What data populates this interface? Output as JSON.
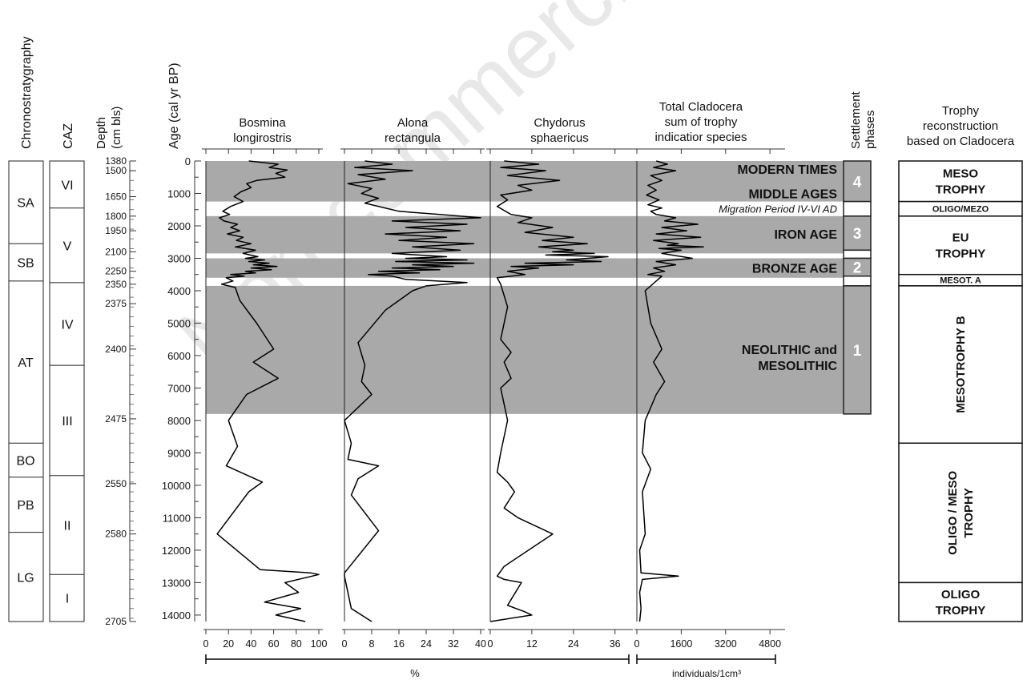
{
  "chart_data": {
    "type": "line",
    "watermark": "Non commercial",
    "column_labels": {
      "chronostratigraphy": "Chronostratygraphy",
      "caz": "CAZ",
      "depth": [
        "Depth",
        "(cm bls)"
      ],
      "age": "Age  (cal yr BP)",
      "settlement": [
        "Settlement",
        "phases"
      ],
      "trophy": [
        "Trophy",
        "reconstruction",
        "based on Cladocera"
      ]
    },
    "age_axis": {
      "ylim": [
        0,
        14200
      ],
      "ticks": [
        0,
        1000,
        2000,
        3000,
        4000,
        5000,
        6000,
        7000,
        8000,
        9000,
        10000,
        11000,
        12000,
        13000,
        14000
      ],
      "tick_labels": [
        "0",
        "1000",
        "2000",
        "3000",
        "4000",
        "5000",
        "6000",
        "7000",
        "8000",
        "9000",
        "10000",
        "11000",
        "12000",
        "13000",
        "14000"
      ]
    },
    "depth_axis": {
      "labels": [
        "1380",
        "1500",
        "1650",
        "1800",
        "1950",
        "2100",
        "2250",
        "2350",
        "2375",
        "2400",
        "2475",
        "2550",
        "2580",
        "2705"
      ],
      "ages": [
        0,
        300,
        1100,
        1700,
        2150,
        2800,
        3400,
        3800,
        4400,
        5800,
        7950,
        9950,
        11500,
        14200
      ]
    },
    "chronozones": [
      {
        "label": "SA",
        "from": 0,
        "to": 2550
      },
      {
        "label": "SB",
        "from": 2550,
        "to": 3700
      },
      {
        "label": "AT",
        "from": 3700,
        "to": 8700
      },
      {
        "label": "BO",
        "from": 8700,
        "to": 9750
      },
      {
        "label": "PB",
        "from": 9750,
        "to": 11450
      },
      {
        "label": "LG",
        "from": 11450,
        "to": 14200
      }
    ],
    "caz_zones": [
      {
        "label": "VI",
        "from": 0,
        "to": 1450
      },
      {
        "label": "V",
        "from": 1450,
        "to": 3750
      },
      {
        "label": "IV",
        "from": 3750,
        "to": 6300
      },
      {
        "label": "III",
        "from": 6300,
        "to": 9700
      },
      {
        "label": "II",
        "from": 9700,
        "to": 12750
      },
      {
        "label": "I",
        "from": 12750,
        "to": 14200
      }
    ],
    "shaded_bands": [
      {
        "from": 0,
        "to": 1250
      },
      {
        "from": 1700,
        "to": 2850
      },
      {
        "from": 3000,
        "to": 3600
      },
      {
        "from": 3850,
        "to": 7800
      }
    ],
    "period_labels": [
      {
        "text": "MODERN TIMES",
        "age": 250,
        "style": "bold"
      },
      {
        "text": "MIDDLE AGES",
        "age": 1000,
        "style": "bold"
      },
      {
        "text": "Migration Period IV-VI AD",
        "age": 1450,
        "style": "italic"
      },
      {
        "text": "IRON AGE",
        "age": 2250,
        "style": "bold"
      },
      {
        "text": "BRONZE AGE",
        "age": 3300,
        "style": "bold"
      },
      {
        "text": "NEOLITHIC and",
        "age": 5800,
        "style": "bold"
      },
      {
        "text": "MESOLITHIC",
        "age": 6300,
        "style": "bold"
      }
    ],
    "series": [
      {
        "name": [
          "Bosmina",
          "longirostris"
        ],
        "xlim": [
          0,
          100
        ],
        "ticks": [
          0,
          20,
          40,
          60,
          80,
          100
        ],
        "tick_labels": [
          "0",
          "20",
          "40",
          "60",
          "80",
          "100"
        ],
        "x": [
          38,
          64,
          56,
          72,
          62,
          70,
          45,
          36,
          40,
          31,
          25,
          33,
          22,
          15,
          21,
          12,
          16,
          28,
          22,
          30,
          19,
          33,
          27,
          40,
          26,
          44,
          33,
          46,
          35,
          52,
          38,
          56,
          42,
          63,
          40,
          58,
          35,
          44,
          22,
          34,
          18,
          24,
          14,
          26,
          30,
          45,
          60,
          42,
          64,
          36,
          20,
          28,
          18,
          50,
          38,
          10,
          48,
          93,
          100,
          70,
          82,
          52,
          84,
          62,
          88
        ],
        "y": [
          0,
          100,
          200,
          280,
          380,
          500,
          600,
          700,
          820,
          950,
          1100,
          1250,
          1400,
          1550,
          1650,
          1750,
          1850,
          1950,
          2050,
          2150,
          2250,
          2350,
          2450,
          2550,
          2650,
          2750,
          2850,
          2950,
          3000,
          3050,
          3100,
          3150,
          3200,
          3250,
          3300,
          3350,
          3400,
          3450,
          3500,
          3550,
          3600,
          3700,
          3800,
          3900,
          4300,
          5000,
          5800,
          6200,
          6700,
          7200,
          8000,
          8800,
          9400,
          9900,
          10200,
          11500,
          12600,
          12700,
          12750,
          13000,
          13300,
          13600,
          13800,
          14000,
          14200
        ]
      },
      {
        "name": [
          "Alona",
          "rectangula"
        ],
        "xlim": [
          0,
          40
        ],
        "ticks": [
          0,
          8,
          16,
          24,
          32,
          40
        ],
        "tick_labels": [
          "0",
          "8",
          "16",
          "24",
          "32",
          "40"
        ],
        "x": [
          6,
          14,
          3,
          20,
          4,
          12,
          1,
          8,
          5,
          10,
          6,
          16,
          28,
          40,
          14,
          36,
          18,
          34,
          12,
          30,
          16,
          38,
          20,
          34,
          14,
          30,
          18,
          36,
          15,
          38,
          20,
          32,
          14,
          28,
          10,
          22,
          7,
          14,
          18,
          36,
          24,
          20,
          12,
          4,
          6,
          5,
          8,
          0,
          2,
          1,
          10,
          4,
          2,
          10,
          0,
          0,
          2,
          8
        ],
        "y": [
          0,
          100,
          200,
          300,
          420,
          560,
          700,
          850,
          1000,
          1150,
          1300,
          1550,
          1650,
          1750,
          1850,
          1950,
          2050,
          2150,
          2250,
          2350,
          2450,
          2550,
          2650,
          2750,
          2850,
          2950,
          3000,
          3050,
          3100,
          3150,
          3200,
          3250,
          3300,
          3350,
          3400,
          3450,
          3500,
          3550,
          3650,
          3750,
          3850,
          4000,
          4600,
          5600,
          6300,
          6800,
          7200,
          8000,
          8700,
          9200,
          9400,
          9800,
          10300,
          11400,
          12700,
          12800,
          13800,
          14200
        ]
      },
      {
        "name": [
          "Chydorus",
          "sphaericus"
        ],
        "xlim": [
          0,
          40
        ],
        "ticks": [
          0,
          12,
          24,
          36
        ],
        "tick_labels": [
          "0",
          "12",
          "24",
          "36"
        ],
        "x": [
          4,
          14,
          3,
          16,
          5,
          20,
          8,
          12,
          3,
          5,
          2,
          6,
          12,
          8,
          18,
          10,
          24,
          15,
          28,
          14,
          24,
          18,
          30,
          16,
          34,
          22,
          32,
          10,
          24,
          6,
          14,
          5,
          10,
          2,
          3,
          5,
          3,
          6,
          4,
          6,
          3,
          5,
          3,
          2,
          5,
          7,
          4,
          8,
          18,
          4,
          2,
          4,
          9,
          5,
          10,
          12,
          0
        ],
        "y": [
          0,
          100,
          200,
          300,
          450,
          600,
          750,
          900,
          1050,
          1200,
          1400,
          1650,
          1750,
          1900,
          2050,
          2200,
          2350,
          2450,
          2550,
          2650,
          2750,
          2800,
          2850,
          2900,
          2950,
          3050,
          3100,
          3150,
          3200,
          3250,
          3300,
          3400,
          3500,
          3600,
          3800,
          4500,
          5500,
          5900,
          6200,
          6700,
          7000,
          8000,
          9000,
          9600,
          9900,
          10200,
          10700,
          11000,
          11500,
          12500,
          12800,
          12900,
          13000,
          13700,
          13900,
          14000,
          14200
        ]
      },
      {
        "name": [
          "Total Cladocera",
          "sum of trophy",
          "indicatior species"
        ],
        "xlim": [
          0,
          5200
        ],
        "ticks": [
          0,
          1600,
          3200,
          4800
        ],
        "tick_labels": [
          "0",
          "1600",
          "3200",
          "4800"
        ],
        "x": [
          700,
          1100,
          600,
          1400,
          500,
          900,
          400,
          700,
          350,
          800,
          400,
          900,
          500,
          700,
          1400,
          1000,
          2200,
          900,
          1800,
          700,
          2300,
          600,
          1500,
          1100,
          2400,
          800,
          1600,
          900,
          2000,
          700,
          1400,
          600,
          1000,
          400,
          900,
          700,
          300,
          500,
          900,
          600,
          1000,
          700,
          300,
          200,
          500,
          200,
          300,
          100,
          150,
          1500,
          200,
          100,
          150,
          100
        ],
        "y": [
          0,
          100,
          200,
          300,
          450,
          600,
          750,
          900,
          1050,
          1200,
          1350,
          1450,
          1550,
          1650,
          1750,
          1850,
          1950,
          2050,
          2150,
          2250,
          2350,
          2450,
          2550,
          2600,
          2650,
          2700,
          2750,
          2850,
          3000,
          3100,
          3200,
          3300,
          3400,
          3500,
          3550,
          3700,
          4000,
          5000,
          5800,
          6200,
          6800,
          7200,
          8000,
          9000,
          9500,
          10200,
          11500,
          12000,
          12700,
          12800,
          12900,
          13300,
          13800,
          14200
        ]
      }
    ],
    "x_unit_percent": "%",
    "x_unit_individuals": "individuals/1cm³",
    "settlement_phases": [
      {
        "label": "4",
        "from": 0,
        "to": 1250,
        "filled": true
      },
      {
        "label": "",
        "from": 1250,
        "to": 1700,
        "filled": false
      },
      {
        "label": "3",
        "from": 1700,
        "to": 2750,
        "filled": true
      },
      {
        "label": "",
        "from": 2750,
        "to": 3000,
        "filled": false
      },
      {
        "label": "2",
        "from": 3000,
        "to": 3550,
        "filled": true
      },
      {
        "label": "",
        "from": 3550,
        "to": 3850,
        "filled": false
      },
      {
        "label": "1",
        "from": 3850,
        "to": 7800,
        "filled": true
      }
    ],
    "trophy_zones": [
      {
        "lines": [
          "MESO",
          "TROPHY"
        ],
        "from": 0,
        "to": 1250,
        "rotate": false
      },
      {
        "lines": [
          "OLIGO/MEZO"
        ],
        "from": 1250,
        "to": 1700,
        "rotate": false,
        "small": true
      },
      {
        "lines": [
          "EU",
          "TROPHY"
        ],
        "from": 1700,
        "to": 3500,
        "rotate": false
      },
      {
        "lines": [
          "MESOT. A"
        ],
        "from": 3500,
        "to": 3850,
        "rotate": false,
        "small": true
      },
      {
        "lines": [
          "MESOTROPHY B"
        ],
        "from": 3850,
        "to": 8700,
        "rotate": true
      },
      {
        "lines": [
          "OLIGO / MESO",
          "TROPHY"
        ],
        "from": 8700,
        "to": 13000,
        "rotate": true
      },
      {
        "lines": [
          "OLIGO",
          "TROPHY"
        ],
        "from": 13000,
        "to": 14200,
        "rotate": false
      }
    ]
  }
}
